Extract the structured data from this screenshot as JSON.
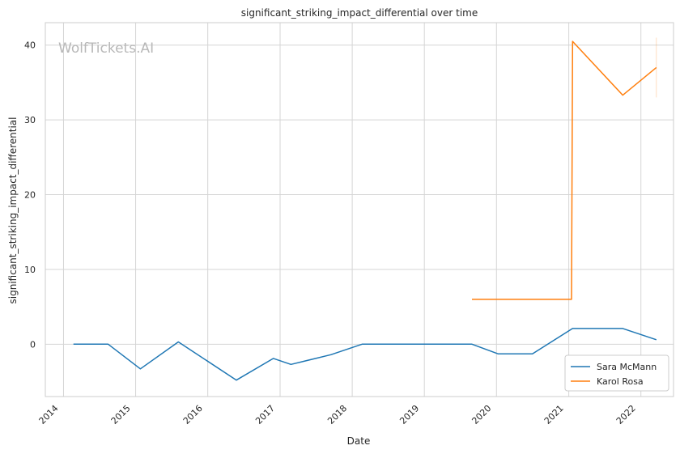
{
  "watermark": "WolfTickets.AI",
  "chart_data": {
    "type": "line",
    "title": "significant_striking_impact_differential over time",
    "xlabel": "Date",
    "ylabel": "significant_striking_impact_differential",
    "x_ticks": [
      "2014",
      "2015",
      "2016",
      "2017",
      "2018",
      "2019",
      "2020",
      "2021",
      "2022"
    ],
    "y_ticks": [
      0,
      10,
      20,
      30,
      40
    ],
    "xlim": [
      "2013-10-01",
      "2022-06-15"
    ],
    "ylim": [
      -7,
      43
    ],
    "grid": true,
    "legend_position": "bottom-right",
    "series": [
      {
        "name": "Sara McMann",
        "color": "#1f77b4",
        "points": [
          [
            "2014-02-20",
            0
          ],
          [
            "2014-08-15",
            0
          ],
          [
            "2015-01-25",
            -3.3
          ],
          [
            "2015-08-05",
            0.3
          ],
          [
            "2016-05-25",
            -4.8
          ],
          [
            "2016-11-28",
            -1.9
          ],
          [
            "2017-02-25",
            -2.7
          ],
          [
            "2017-09-15",
            -1.4
          ],
          [
            "2018-02-20",
            0
          ],
          [
            "2019-08-30",
            0
          ],
          [
            "2020-01-10",
            -1.3
          ],
          [
            "2020-07-01",
            -1.3
          ],
          [
            "2021-01-20",
            2.1
          ],
          [
            "2021-10-01",
            2.1
          ],
          [
            "2022-03-20",
            0.6
          ]
        ]
      },
      {
        "name": "Karol Rosa",
        "color": "#ff7f0e",
        "points": [
          [
            "2019-08-30",
            6
          ],
          [
            "2021-01-15",
            6
          ],
          [
            "2021-01-20",
            40.5
          ],
          [
            "2021-10-01",
            33.3
          ],
          [
            "2022-03-20",
            37
          ]
        ],
        "error_band": {
          "x": "2022-03-20",
          "low": 33,
          "high": 41
        }
      }
    ]
  }
}
